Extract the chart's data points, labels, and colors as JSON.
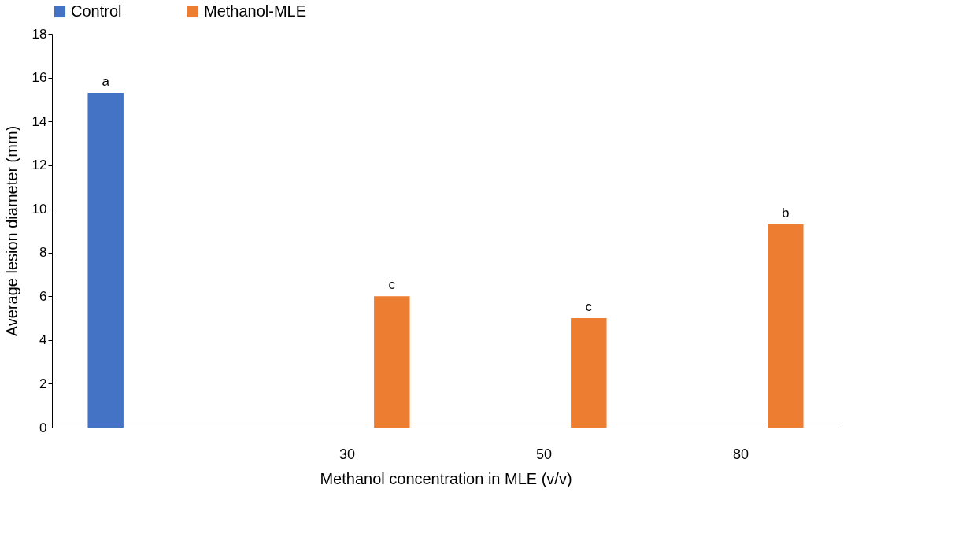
{
  "chart_data": {
    "type": "bar",
    "xlabel": "Methanol concentration in MLE (v/v)",
    "ylabel": "Average lesion diameter (mm)",
    "categories": [
      null,
      "30",
      "50",
      "80"
    ],
    "series": [
      {
        "name": "Control",
        "color": "#4472c4",
        "values": [
          15.3,
          null,
          null,
          null
        ],
        "value_labels": [
          "a",
          null,
          null,
          null
        ]
      },
      {
        "name": "Methanol-MLE",
        "color": "#ed7d31",
        "values": [
          null,
          6.0,
          5.0,
          9.3
        ],
        "value_labels": [
          null,
          "c",
          "c",
          "b"
        ]
      }
    ],
    "ylim": [
      0,
      18
    ],
    "yticks": [
      0,
      2,
      4,
      6,
      8,
      10,
      12,
      14,
      16,
      18
    ],
    "grid": false,
    "legend": "top"
  }
}
